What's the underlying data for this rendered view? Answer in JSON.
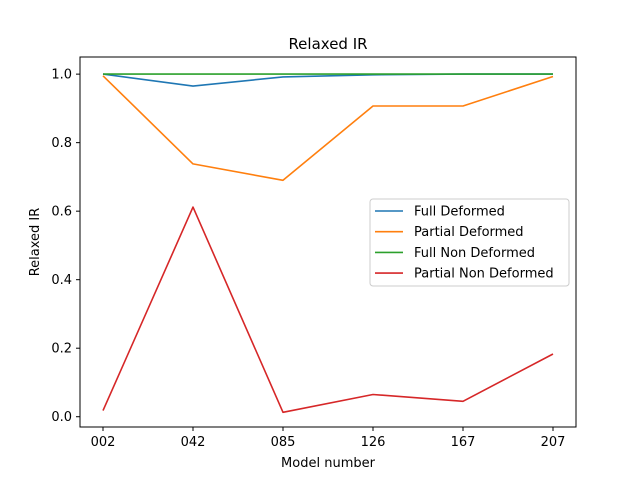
{
  "chart_data": {
    "type": "line",
    "title": "Relaxed IR",
    "xlabel": "Model number",
    "ylabel": "Relaxed IR",
    "categories": [
      "002",
      "042",
      "085",
      "126",
      "167",
      "207"
    ],
    "yticks": [
      "0.0",
      "0.2",
      "0.4",
      "0.6",
      "0.8",
      "1.0"
    ],
    "ylim": [
      -0.03,
      1.05
    ],
    "grid": false,
    "legend_position": "center-right",
    "series": [
      {
        "name": "Full Deformed",
        "color": "#1f77b4",
        "values": [
          1.0,
          0.965,
          0.992,
          0.998,
          1.0,
          1.0
        ]
      },
      {
        "name": "Partial Deformed",
        "color": "#ff7f0e",
        "values": [
          0.995,
          0.738,
          0.69,
          0.907,
          0.907,
          0.993
        ]
      },
      {
        "name": "Full Non Deformed",
        "color": "#2ca02c",
        "values": [
          1.0,
          1.0,
          1.0,
          1.0,
          1.0,
          1.0
        ]
      },
      {
        "name": "Partial Non Deformed",
        "color": "#d62728",
        "values": [
          0.018,
          0.612,
          0.013,
          0.065,
          0.045,
          0.183
        ]
      }
    ]
  }
}
